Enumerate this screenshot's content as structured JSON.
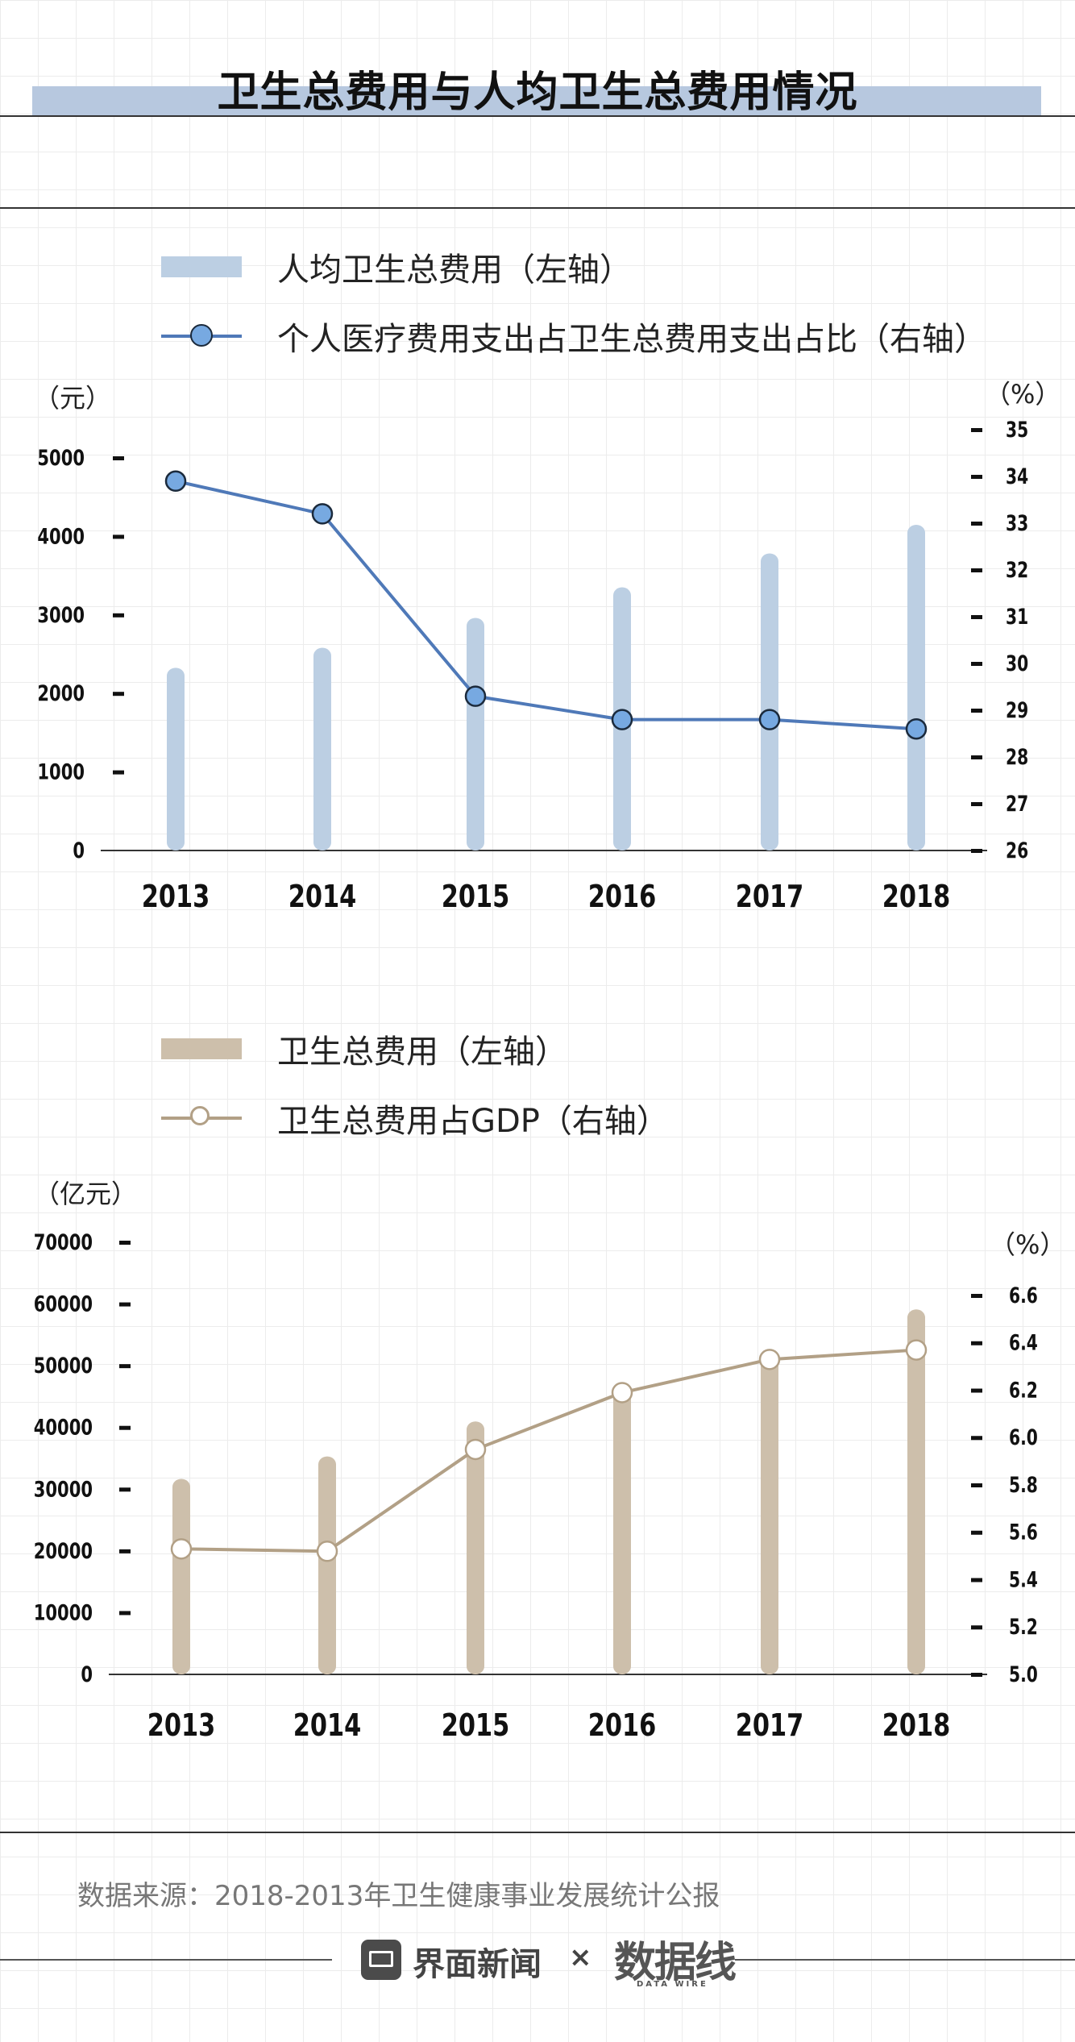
{
  "page": {
    "title": "卫生总费用与人均卫生总费用情况"
  },
  "colors": {
    "blue_bar": "#bccfe3",
    "blue_line": "#4f79b8",
    "blue_dot": "#77a9e1",
    "tan_bar": "#cdbfab",
    "tan_line": "#b2a086"
  },
  "chart_data": [
    {
      "type": "bar",
      "title": "",
      "categories": [
        "2013",
        "2014",
        "2015",
        "2016",
        "2017",
        "2018"
      ],
      "series": [
        {
          "name": "人均卫生总费用（左轴）",
          "kind": "bar",
          "axis": "left",
          "values": [
            2327,
            2582,
            2962,
            3352,
            3784,
            4148
          ]
        },
        {
          "name": "个人医疗费用支出占卫生总费用支出占比（右轴）",
          "kind": "line",
          "axis": "right",
          "values": [
            33.9,
            33.2,
            29.3,
            28.8,
            28.8,
            28.6
          ]
        }
      ],
      "ylabel_left": "（元）",
      "ylabel_right": "（%）",
      "ylim_left": [
        0,
        5000
      ],
      "ylim_right": [
        26,
        35
      ],
      "yticks_left": [
        "0",
        "1000",
        "2000",
        "3000",
        "4000",
        "5000"
      ],
      "yticks_right": [
        "26",
        "27",
        "28",
        "29",
        "30",
        "31",
        "32",
        "33",
        "34",
        "35"
      ]
    },
    {
      "type": "bar",
      "title": "",
      "categories": [
        "2013",
        "2014",
        "2015",
        "2016",
        "2017",
        "2018"
      ],
      "series": [
        {
          "name": "卫生总费用（左轴）",
          "kind": "bar",
          "axis": "left",
          "values": [
            31669,
            35312,
            40975,
            46345,
            52598,
            59122
          ]
        },
        {
          "name": "卫生总费用占GDP（右轴）",
          "kind": "line",
          "axis": "right",
          "values": [
            5.53,
            5.52,
            5.95,
            6.19,
            6.33,
            6.37
          ]
        }
      ],
      "ylabel_left": "（亿元）",
      "ylabel_right": "（%）",
      "ylim_left": [
        0,
        70000
      ],
      "ylim_right": [
        5.0,
        6.6
      ],
      "yticks_left": [
        "0",
        "10000",
        "20000",
        "30000",
        "40000",
        "50000",
        "60000",
        "70000"
      ],
      "yticks_right": [
        "5.0",
        "5.2",
        "5.4",
        "5.6",
        "5.8",
        "6.0",
        "6.2",
        "6.4",
        "6.6"
      ]
    }
  ],
  "footer": {
    "source": "数据来源：2018-2013年卫生健康事业发展统计公报",
    "brand_name": "界面新闻",
    "separator": "×",
    "partner_logo": "数据线",
    "partner_sub": "DATA WIRE"
  }
}
